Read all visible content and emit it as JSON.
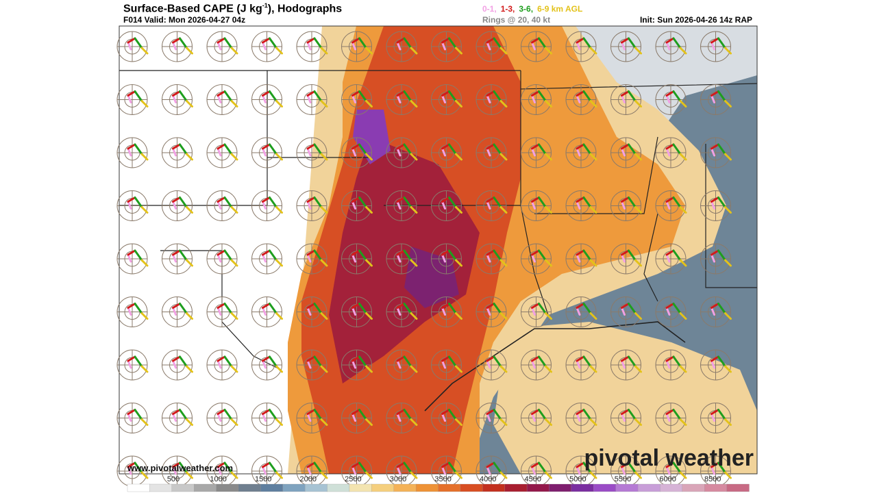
{
  "header": {
    "title": "Surface-Based CAPE (J kg",
    "title_sup": "-1",
    "title_end": "), Hodographs",
    "valid": "F014 Valid: Mon 2026-04-27 04z",
    "layers": [
      {
        "text": "0-1,",
        "color": "#f2a0e4"
      },
      {
        "text": "1-3,",
        "color": "#d21a1a"
      },
      {
        "text": "3-6,",
        "color": "#1e9e1e"
      },
      {
        "text": "6-9 km AGL",
        "color": "#e3c21a"
      }
    ],
    "rings": "Rings @ 20, 40 kt",
    "init": "Init: Sun 2026-04-26 14z RAP"
  },
  "map": {
    "url": "www.pivotalweather.com",
    "watermark": "pivotal weather"
  },
  "colorbar": {
    "labels": [
      500,
      1000,
      1500,
      2000,
      2500,
      3000,
      3500,
      4000,
      4500,
      5000,
      5500,
      6000,
      8500
    ],
    "colors": [
      "#ffffff",
      "#e4e4e4",
      "#c8c8c8",
      "#a8a8a8",
      "#8a8a8a",
      "#6f7f8f",
      "#5f7f9f",
      "#7fa3bf",
      "#a7c3d3",
      "#cfe0d8",
      "#f3e4b0",
      "#f5cf7e",
      "#f4b258",
      "#ee9236",
      "#e5702a",
      "#d84e22",
      "#c3301e",
      "#a81e30",
      "#93184a",
      "#7e1e6e",
      "#7a2ea0",
      "#9a4cc6",
      "#b57ad4",
      "#c89ed8",
      "#d6b3d6",
      "#d9a5b8",
      "#d68aa0",
      "#c86a84"
    ]
  }
}
